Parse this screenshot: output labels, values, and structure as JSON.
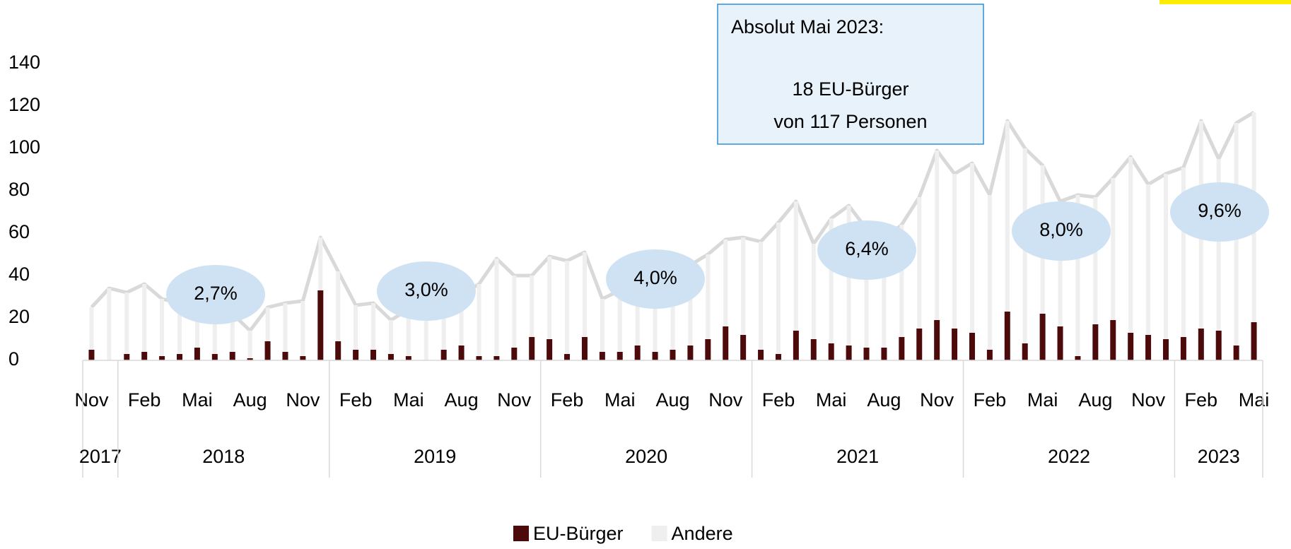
{
  "chart_data": {
    "type": "stacked_bar",
    "groups": [
      {
        "name": "2017",
        "categories": [
          "Nov",
          null
        ]
      },
      {
        "name": "2018",
        "categories": [
          null,
          "Feb",
          null,
          null,
          "Mai",
          null,
          null,
          "Aug",
          null,
          null,
          "Nov",
          null
        ]
      },
      {
        "name": "2019",
        "categories": [
          null,
          "Feb",
          null,
          null,
          "Mai",
          null,
          null,
          "Aug",
          null,
          null,
          "Nov",
          null
        ]
      },
      {
        "name": "2020",
        "categories": [
          null,
          "Feb",
          null,
          null,
          "Mai",
          null,
          null,
          "Aug",
          null,
          null,
          "Nov",
          null
        ]
      },
      {
        "name": "2021",
        "categories": [
          null,
          "Feb",
          null,
          null,
          "Mai",
          null,
          null,
          "Aug",
          null,
          null,
          "Nov",
          null
        ]
      },
      {
        "name": "2022",
        "categories": [
          null,
          "Feb",
          null,
          null,
          "Mai",
          null,
          null,
          "Aug",
          null,
          null,
          "Nov",
          null
        ]
      },
      {
        "name": "2023",
        "categories": [
          null,
          "Feb",
          null,
          null,
          "Mai"
        ]
      }
    ],
    "series": [
      {
        "name": "EU-Bürger",
        "color": "#4d0a0a",
        "values": [
          5,
          0,
          3,
          4,
          2,
          3,
          6,
          3,
          4,
          1,
          9,
          4,
          2,
          33,
          9,
          5,
          5,
          3,
          2,
          0,
          5,
          7,
          2,
          2,
          6,
          11,
          10,
          3,
          11,
          4,
          4,
          7,
          4,
          5,
          7,
          10,
          16,
          12,
          5,
          3,
          14,
          10,
          8,
          7,
          6,
          6,
          11,
          15,
          19,
          15,
          13,
          5,
          23,
          8,
          22,
          16,
          2,
          17,
          19,
          13,
          12,
          10,
          11,
          15,
          14,
          7,
          18
        ]
      },
      {
        "name": "Andere",
        "color": "#efefef",
        "values": [
          20,
          34,
          29,
          32,
          27,
          24,
          20,
          21,
          18,
          13,
          16,
          23,
          26,
          25,
          33,
          21,
          22,
          16,
          22,
          24,
          20,
          24,
          34,
          46,
          34,
          29,
          39,
          44,
          40,
          25,
          29,
          27,
          34,
          35,
          38,
          40,
          41,
          46,
          51,
          62,
          61,
          45,
          59,
          66,
          56,
          51,
          53,
          62,
          80,
          73,
          80,
          73,
          90,
          92,
          70,
          59,
          76,
          60,
          67,
          83,
          71,
          78,
          80,
          98,
          81,
          105,
          99
        ]
      }
    ],
    "total_line_color": "#d9d9d9",
    "ylim": [
      0,
      140
    ],
    "yticks": [
      0,
      20,
      40,
      60,
      80,
      100,
      120,
      140
    ],
    "annotations": [
      "2,7%",
      "3,0%",
      "4,0%",
      "6,4%",
      "8,0%",
      "9,6%"
    ],
    "textbox": {
      "title": "Absolut Mai 2023:",
      "lines": [
        "18 EU-Bürger",
        "von 117 Personen"
      ]
    },
    "legend": "bottom"
  }
}
